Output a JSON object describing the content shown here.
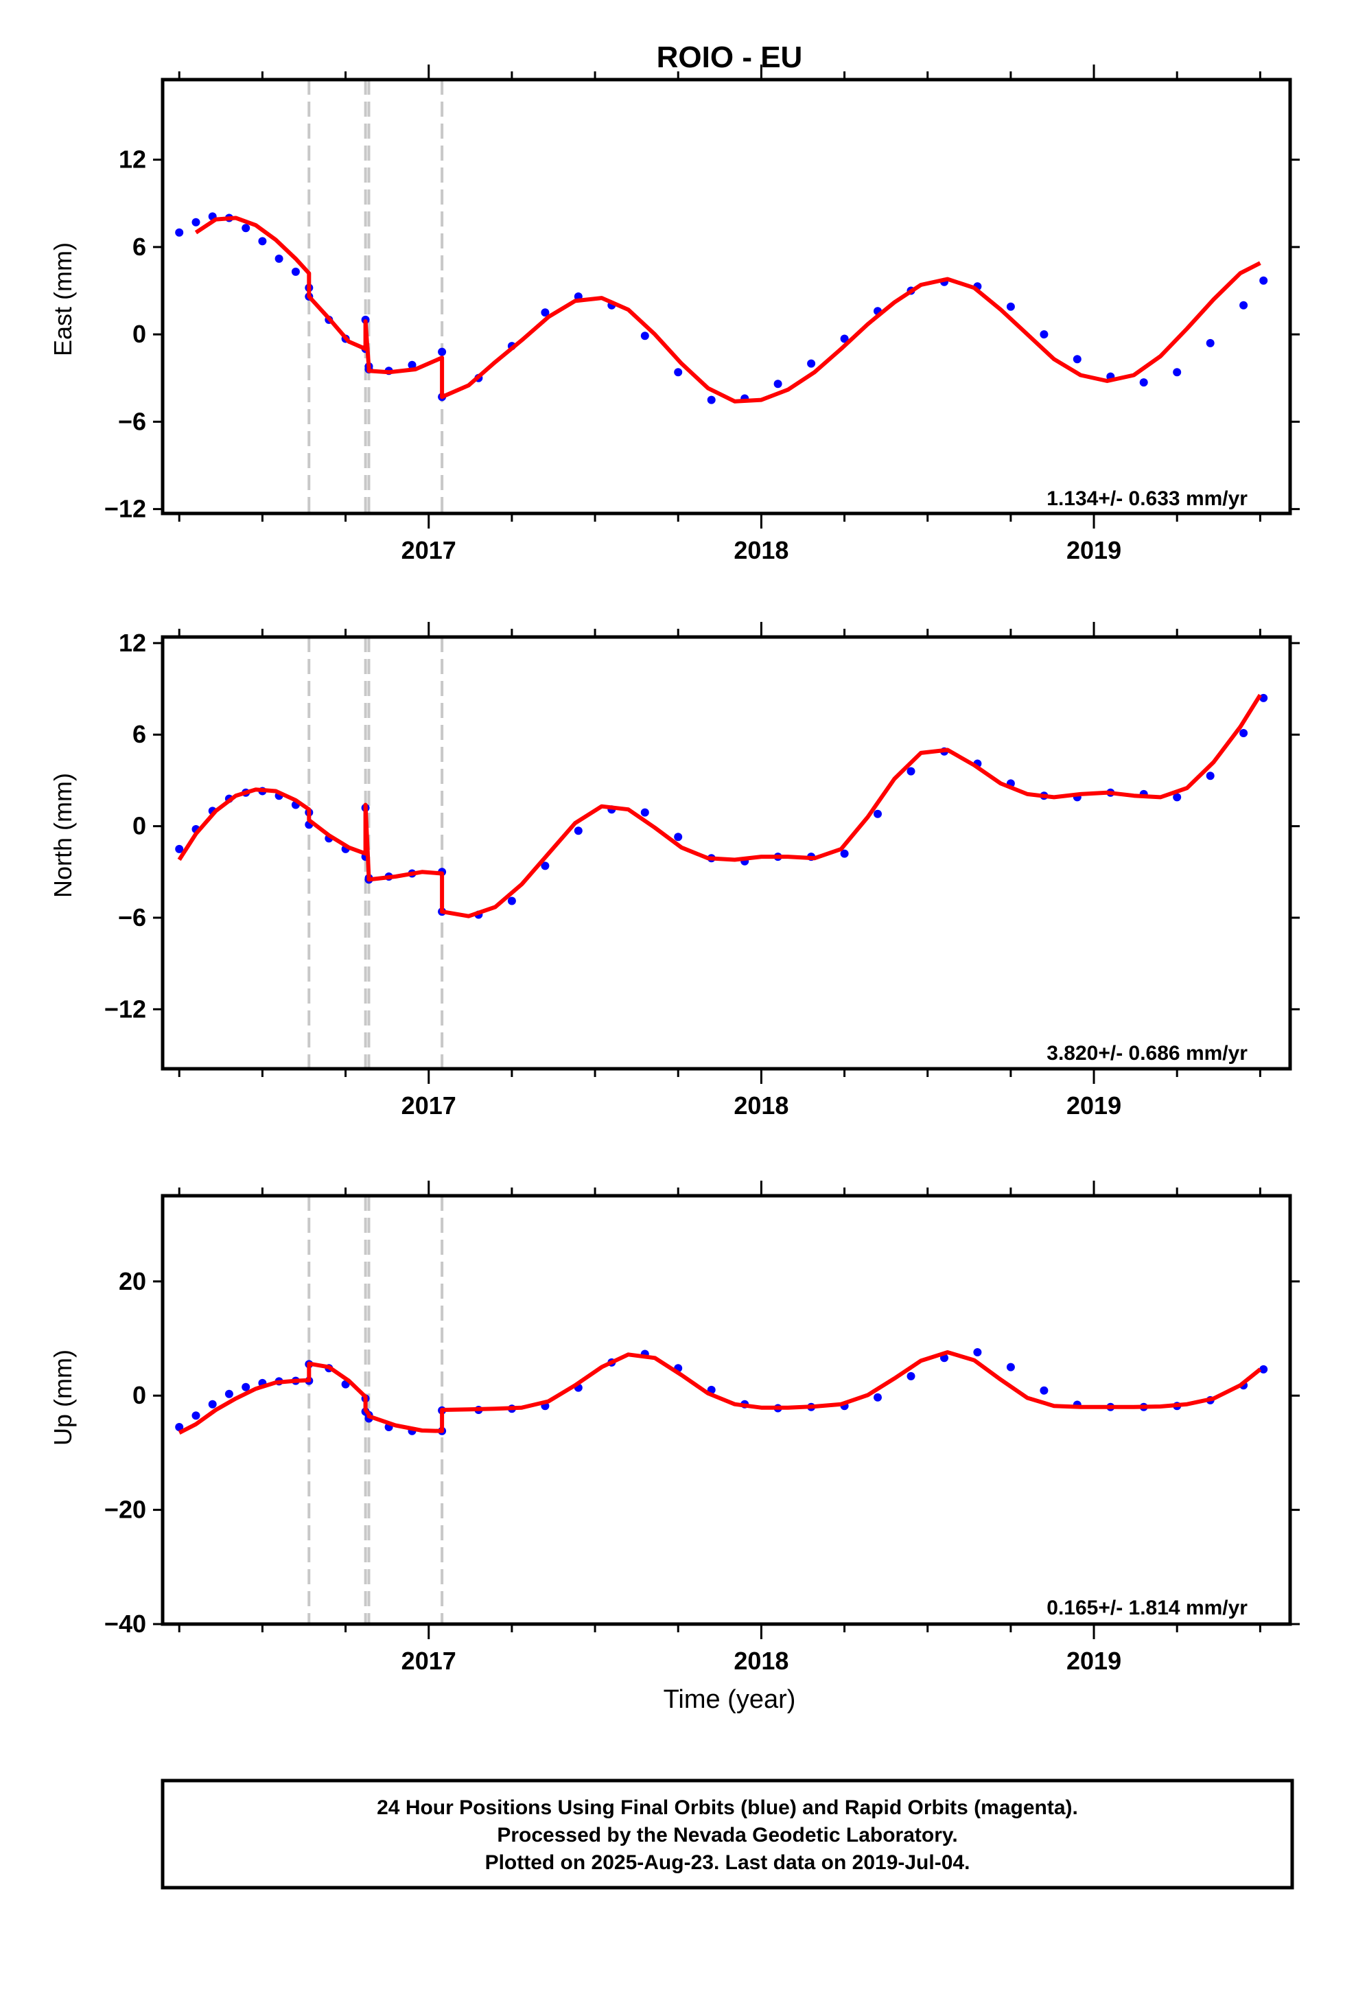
{
  "title": "ROIO - EU",
  "x_axis_label": "Time (year)",
  "footer_lines": [
    "24 Hour Positions Using Final Orbits (blue) and Rapid Orbits (magenta).",
    "Processed by the Nevada Geodetic Laboratory.",
    "Plotted on 2025-Aug-23. Last data on 2019-Jul-04."
  ],
  "colors": {
    "points": "#0000ff",
    "model": "#ff0000",
    "steps": "#c8c8c8",
    "frame": "#000000"
  },
  "chart_data": [
    {
      "type": "scatter",
      "ylabel": "East (mm)",
      "rate_label": "1.134+/- 0.633 mm/yr",
      "xlim": [
        2016.2,
        2019.59
      ],
      "ylim": [
        -12.3,
        17.5
      ],
      "yticks": [
        -12,
        -6,
        0,
        6,
        12
      ],
      "xticks": [
        2017,
        2018,
        2019
      ],
      "step_lines": [
        2016.64,
        2016.81,
        2016.82,
        2017.04
      ],
      "series": [
        {
          "x": [
            2016.25,
            2016.3,
            2016.35,
            2016.4,
            2016.45,
            2016.5,
            2016.55,
            2016.6,
            2016.64,
            2016.64,
            2016.7,
            2016.75,
            2016.81,
            2016.81,
            2016.82,
            2016.82,
            2016.88,
            2016.95,
            2017.04,
            2017.04,
            2017.15,
            2017.25,
            2017.35,
            2017.45,
            2017.55,
            2017.65,
            2017.75,
            2017.85,
            2017.95,
            2018.05,
            2018.15,
            2018.25,
            2018.35,
            2018.45,
            2018.55,
            2018.65,
            2018.75,
            2018.85,
            2018.95,
            2019.05,
            2019.15,
            2019.25,
            2019.35,
            2019.45,
            2019.51
          ],
          "y": [
            7.0,
            7.7,
            8.1,
            8.0,
            7.3,
            6.4,
            5.2,
            4.3,
            3.2,
            2.6,
            1.0,
            -0.3,
            -1.0,
            1.0,
            -2.2,
            -2.4,
            -2.5,
            -2.1,
            -1.2,
            -4.3,
            -3.0,
            -0.8,
            1.5,
            2.6,
            2.0,
            -0.1,
            -2.6,
            -4.5,
            -4.4,
            -3.4,
            -2.0,
            -0.3,
            1.6,
            3.0,
            3.6,
            3.3,
            1.9,
            0.0,
            -1.7,
            -2.9,
            -3.3,
            -2.6,
            -0.6,
            2.0,
            3.7
          ]
        }
      ],
      "model": {
        "x": [
          2016.3,
          2016.36,
          2016.42,
          2016.48,
          2016.54,
          2016.6,
          2016.64,
          2016.64,
          2016.7,
          2016.76,
          2016.81,
          2016.81,
          2016.82,
          2016.82,
          2016.88,
          2016.96,
          2017.04,
          2017.04,
          2017.12,
          2017.2,
          2017.28,
          2017.36,
          2017.44,
          2017.52,
          2017.6,
          2017.68,
          2017.76,
          2017.84,
          2017.92,
          2018.0,
          2018.08,
          2018.16,
          2018.24,
          2018.32,
          2018.4,
          2018.48,
          2018.56,
          2018.64,
          2018.72,
          2018.8,
          2018.88,
          2018.96,
          2019.04,
          2019.12,
          2019.2,
          2019.28,
          2019.36,
          2019.44,
          2019.5
        ],
        "y": [
          7.0,
          7.9,
          8.0,
          7.5,
          6.5,
          5.2,
          4.2,
          2.6,
          1.1,
          -0.5,
          -1.0,
          0.9,
          -2.3,
          -2.5,
          -2.6,
          -2.4,
          -1.6,
          -4.3,
          -3.5,
          -1.9,
          -0.4,
          1.2,
          2.3,
          2.5,
          1.7,
          0.0,
          -2.0,
          -3.7,
          -4.6,
          -4.5,
          -3.8,
          -2.6,
          -1.0,
          0.7,
          2.2,
          3.4,
          3.8,
          3.2,
          1.7,
          0.0,
          -1.7,
          -2.8,
          -3.2,
          -2.8,
          -1.5,
          0.4,
          2.4,
          4.2,
          4.9
        ]
      }
    },
    {
      "type": "scatter",
      "ylabel": "North (mm)",
      "rate_label": "3.820+/- 0.686 mm/yr",
      "xlim": [
        2016.2,
        2019.59
      ],
      "ylim": [
        -15.9,
        12.4
      ],
      "yticks": [
        -12,
        -6,
        0,
        6,
        12
      ],
      "xticks": [
        2017,
        2018,
        2019
      ],
      "step_lines": [
        2016.64,
        2016.81,
        2016.82,
        2017.04
      ],
      "series": [
        {
          "x": [
            2016.25,
            2016.3,
            2016.35,
            2016.4,
            2016.45,
            2016.5,
            2016.55,
            2016.6,
            2016.64,
            2016.64,
            2016.7,
            2016.75,
            2016.81,
            2016.81,
            2016.82,
            2016.82,
            2016.88,
            2016.95,
            2017.04,
            2017.04,
            2017.15,
            2017.25,
            2017.35,
            2017.45,
            2017.55,
            2017.65,
            2017.75,
            2017.85,
            2017.95,
            2018.05,
            2018.15,
            2018.25,
            2018.35,
            2018.45,
            2018.55,
            2018.65,
            2018.75,
            2018.85,
            2018.95,
            2019.05,
            2019.15,
            2019.25,
            2019.35,
            2019.45,
            2019.51
          ],
          "y": [
            -1.5,
            -0.2,
            1.0,
            1.8,
            2.2,
            2.3,
            2.0,
            1.4,
            0.9,
            0.1,
            -0.8,
            -1.5,
            -2.0,
            1.2,
            -3.4,
            -3.5,
            -3.3,
            -3.1,
            -3.0,
            -5.6,
            -5.8,
            -4.9,
            -2.6,
            -0.3,
            1.1,
            0.9,
            -0.7,
            -2.1,
            -2.3,
            -2.0,
            -2.0,
            -1.8,
            0.8,
            3.6,
            4.9,
            4.1,
            2.8,
            2.0,
            1.9,
            2.2,
            2.1,
            1.9,
            3.3,
            6.1,
            8.4
          ]
        }
      ],
      "model": {
        "x": [
          2016.25,
          2016.3,
          2016.36,
          2016.42,
          2016.48,
          2016.54,
          2016.6,
          2016.64,
          2016.64,
          2016.7,
          2016.76,
          2016.81,
          2016.81,
          2016.82,
          2016.82,
          2016.9,
          2016.98,
          2017.04,
          2017.04,
          2017.12,
          2017.2,
          2017.28,
          2017.36,
          2017.44,
          2017.52,
          2017.6,
          2017.68,
          2017.76,
          2017.84,
          2017.92,
          2018.0,
          2018.08,
          2018.16,
          2018.24,
          2018.32,
          2018.4,
          2018.48,
          2018.56,
          2018.64,
          2018.72,
          2018.8,
          2018.88,
          2018.96,
          2019.04,
          2019.12,
          2019.2,
          2019.28,
          2019.36,
          2019.44,
          2019.5
        ],
        "y": [
          -2.2,
          -0.5,
          1.0,
          2.0,
          2.4,
          2.3,
          1.7,
          1.1,
          0.4,
          -0.6,
          -1.4,
          -1.8,
          1.4,
          -3.4,
          -3.5,
          -3.3,
          -3.0,
          -3.1,
          -5.6,
          -5.9,
          -5.3,
          -3.8,
          -1.8,
          0.2,
          1.3,
          1.1,
          -0.1,
          -1.4,
          -2.1,
          -2.2,
          -2.0,
          -2.0,
          -2.1,
          -1.5,
          0.6,
          3.1,
          4.8,
          5.0,
          4.0,
          2.8,
          2.1,
          1.9,
          2.1,
          2.2,
          2.0,
          1.9,
          2.5,
          4.2,
          6.5,
          8.6
        ]
      }
    },
    {
      "type": "scatter",
      "ylabel": "Up (mm)",
      "rate_label": "0.165+/- 1.814 mm/yr",
      "xlim": [
        2016.2,
        2019.59
      ],
      "ylim": [
        -40,
        35
      ],
      "yticks": [
        -40,
        -20,
        0,
        20
      ],
      "xticks": [
        2017,
        2018,
        2019
      ],
      "step_lines": [
        2016.64,
        2016.81,
        2016.82,
        2017.04
      ],
      "series": [
        {
          "x": [
            2016.25,
            2016.3,
            2016.35,
            2016.4,
            2016.45,
            2016.5,
            2016.55,
            2016.6,
            2016.64,
            2016.64,
            2016.7,
            2016.75,
            2016.81,
            2016.81,
            2016.82,
            2016.82,
            2016.88,
            2016.95,
            2017.04,
            2017.04,
            2017.15,
            2017.25,
            2017.35,
            2017.45,
            2017.55,
            2017.65,
            2017.75,
            2017.85,
            2017.95,
            2018.05,
            2018.15,
            2018.25,
            2018.35,
            2018.45,
            2018.55,
            2018.65,
            2018.75,
            2018.85,
            2018.95,
            2019.05,
            2019.15,
            2019.25,
            2019.35,
            2019.45,
            2019.51
          ],
          "y": [
            -5.5,
            -3.5,
            -1.5,
            0.3,
            1.5,
            2.2,
            2.5,
            2.6,
            2.6,
            5.5,
            4.8,
            2.0,
            -0.5,
            -2.8,
            -3.4,
            -4.0,
            -5.5,
            -6.2,
            -6.2,
            -2.6,
            -2.5,
            -2.3,
            -1.8,
            1.4,
            5.8,
            7.3,
            4.8,
            1.0,
            -1.5,
            -2.2,
            -2.0,
            -1.8,
            -0.3,
            3.4,
            6.6,
            7.6,
            5.0,
            0.9,
            -1.6,
            -2.0,
            -2.0,
            -1.8,
            -0.8,
            1.8,
            4.6
          ]
        }
      ],
      "model": {
        "x": [
          2016.25,
          2016.3,
          2016.36,
          2016.42,
          2016.48,
          2016.54,
          2016.6,
          2016.64,
          2016.64,
          2016.7,
          2016.76,
          2016.81,
          2016.81,
          2016.82,
          2016.82,
          2016.9,
          2016.98,
          2017.04,
          2017.04,
          2017.12,
          2017.2,
          2017.28,
          2017.36,
          2017.44,
          2017.52,
          2017.6,
          2017.68,
          2017.76,
          2017.84,
          2017.92,
          2018.0,
          2018.08,
          2018.16,
          2018.24,
          2018.32,
          2018.4,
          2018.48,
          2018.56,
          2018.64,
          2018.72,
          2018.8,
          2018.88,
          2018.96,
          2019.04,
          2019.12,
          2019.2,
          2019.28,
          2019.36,
          2019.44,
          2019.5
        ],
        "y": [
          -6.5,
          -5.0,
          -2.5,
          -0.5,
          1.2,
          2.3,
          2.6,
          2.7,
          5.6,
          5.0,
          2.6,
          -0.2,
          -2.5,
          -3.3,
          -3.6,
          -5.2,
          -6.1,
          -6.2,
          -2.5,
          -2.4,
          -2.3,
          -2.1,
          -1.0,
          1.8,
          5.0,
          7.2,
          6.6,
          3.6,
          0.4,
          -1.5,
          -2.1,
          -2.1,
          -1.9,
          -1.5,
          0.1,
          3.0,
          6.1,
          7.6,
          6.2,
          2.8,
          -0.4,
          -1.8,
          -2.0,
          -2.0,
          -2.0,
          -1.9,
          -1.5,
          -0.5,
          1.8,
          4.6
        ]
      }
    }
  ]
}
